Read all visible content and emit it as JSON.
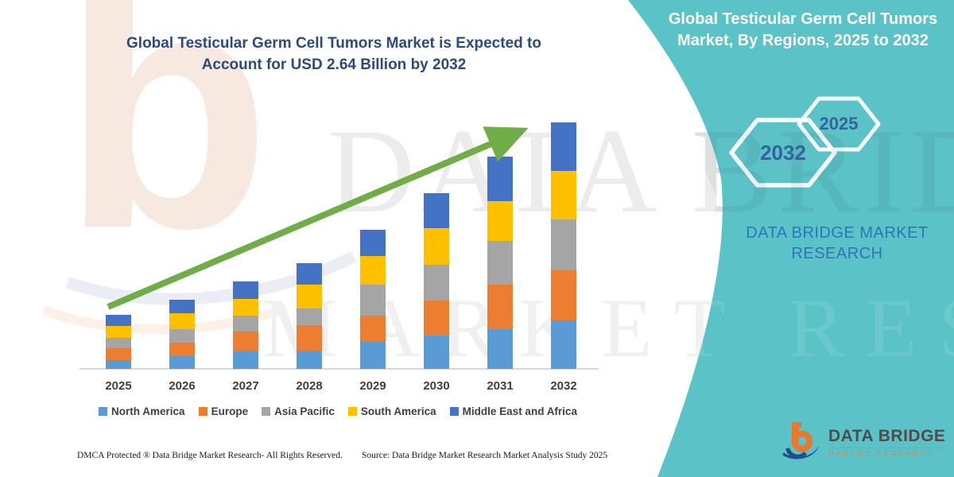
{
  "left_panel": {
    "title": "Global Testicular Germ Cell Tumors Market is Expected to Account for USD 2.64 Billion by 2032",
    "footer_left": "DMCA Protected ® Data Bridge Market Research-  All Rights Reserved.",
    "footer_source": "Source: Data Bridge Market Research  Market Analysis Study 2025"
  },
  "right_panel": {
    "title": "Global Testicular Germ Cell Tumors Market, By Regions, 2025 to 2032",
    "hexagon_large_label": "2032",
    "hexagon_small_label": "2025",
    "brand_text": "DATA BRIDGE MARKET RESEARCH",
    "background_color": "#5BC2C7",
    "hexagon_outline_color": "#FFFFFF",
    "hexagon_text_color": "#31659C"
  },
  "logo": {
    "name": "DATA BRIDGE",
    "subtitle": "MARKET RESEARCH",
    "mark_orange": "#E8792E",
    "mark_blue": "#1F4E8C"
  },
  "watermarks": {
    "big_text": "DATA BRIDGE",
    "second_text": "MARKET RESEARCH"
  },
  "chart_data": {
    "type": "bar",
    "stacked": true,
    "unit": "USD Billion",
    "title": "Global Testicular Germ Cell Tumors Market is Expected to Account for USD 2.64 Billion by 2032",
    "categories": [
      "2025",
      "2026",
      "2027",
      "2028",
      "2029",
      "2030",
      "2031",
      "2032"
    ],
    "series": [
      {
        "name": "North America",
        "color": "#5B9BD5",
        "values": [
          0.09,
          0.14,
          0.19,
          0.19,
          0.29,
          0.36,
          0.43,
          0.52
        ]
      },
      {
        "name": "Europe",
        "color": "#ED7D31",
        "values": [
          0.13,
          0.14,
          0.21,
          0.28,
          0.28,
          0.37,
          0.47,
          0.54
        ]
      },
      {
        "name": "Asia Pacific",
        "color": "#A5A5A5",
        "values": [
          0.11,
          0.15,
          0.17,
          0.18,
          0.33,
          0.39,
          0.47,
          0.54
        ]
      },
      {
        "name": "South America",
        "color": "#FFC000",
        "values": [
          0.13,
          0.17,
          0.18,
          0.25,
          0.31,
          0.39,
          0.43,
          0.52
        ]
      },
      {
        "name": "Middle East and Africa",
        "color": "#4472C4",
        "values": [
          0.12,
          0.14,
          0.19,
          0.23,
          0.28,
          0.37,
          0.47,
          0.52
        ]
      }
    ],
    "totals": [
      0.58,
      0.74,
      0.94,
      1.13,
      1.49,
      1.88,
      2.27,
      2.64
    ],
    "final_value_label": "USD 2.64 Billion by 2032",
    "ylim": [
      0,
      2.8
    ],
    "grid": false,
    "legend_position": "bottom",
    "trend_arrow": {
      "color": "#70AD47",
      "direction": "up-right"
    }
  }
}
